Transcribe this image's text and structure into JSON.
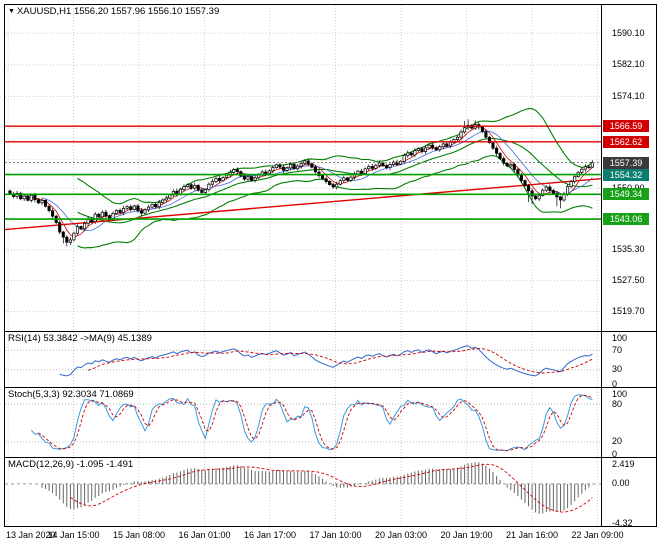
{
  "main_header": {
    "icon": "▼",
    "text": "XAUUSD,H1 1556.20 1557.96 1556.10 1557.39"
  },
  "panels": {
    "rsi": {
      "header": "RSI(14) 53.3842 ->MA(9) 45.1389",
      "axis": [
        "100",
        "70",
        "30",
        "0"
      ],
      "axis_values": [
        100,
        70,
        30,
        0
      ],
      "levels": [
        70,
        30
      ]
    },
    "stoch": {
      "header": "Stoch(5,3,3) 92.3034 71.0869",
      "axis": [
        "100",
        "80",
        "20",
        "0"
      ],
      "axis_values": [
        100,
        80,
        20,
        0
      ],
      "levels": [
        80,
        20
      ]
    },
    "macd": {
      "header": "MACD(12,26,9) -1.095 -1.491",
      "axis": [
        {
          "text": "2.419",
          "value": 2.419
        },
        {
          "text": "0.00",
          "value": 0
        },
        {
          "text": "-4.32",
          "value": -4.32
        }
      ],
      "range": [
        -4.32,
        2.419
      ]
    }
  },
  "time_axis": {
    "labels": [
      "13 Jan 2020",
      "14 Jan 15:00",
      "15 Jan 08:00",
      "16 Jan 01:00",
      "16 Jan 17:00",
      "17 Jan 10:00",
      "20 Jan 03:00",
      "20 Jan 19:00",
      "21 Jan 16:00",
      "22 Jan 09:00"
    ]
  },
  "colors": {
    "grid": "#cdcdcd",
    "bollinger": "#008000",
    "level_red": "#e00000",
    "level_green": "#00a000",
    "rsi_line": "#3366cc",
    "rsi_ma": "#cc0000",
    "stoch_main": "#3a9ad9",
    "stoch_signal": "#cc0000",
    "macd_hist": "#666666",
    "macd_signal": "#cc0000",
    "badge_red": "#d20000",
    "badge_dark": "#3a3a3a",
    "badge_teal": "#0b7d6e",
    "badge_green": "#18a018"
  },
  "chart_data": {
    "type": "candlestick",
    "symbol": "XAUUSD",
    "timeframe": "H1",
    "current_bar": {
      "open": 1556.2,
      "high": 1557.96,
      "low": 1556.1,
      "close": 1557.39
    },
    "bars": {
      "first_open": 1550.2,
      "closes": [
        1549.5,
        1548.8,
        1549.6,
        1548.2,
        1548.9,
        1547.8,
        1549.1,
        1548.0,
        1547.2,
        1547.8,
        1546.3,
        1545.2,
        1543.8,
        1542.2,
        1539.8,
        1538.5,
        1537.2,
        1537.8,
        1539.5,
        1541.2,
        1540.6,
        1542.0,
        1543.1,
        1542.4,
        1544.3,
        1543.6,
        1544.8,
        1543.9,
        1543.2,
        1544.5,
        1545.3,
        1544.7,
        1545.8,
        1546.2,
        1545.5,
        1546.4,
        1545.2,
        1544.6,
        1545.4,
        1546.1,
        1546.8,
        1546.2,
        1547.3,
        1547.9,
        1548.4,
        1549.2,
        1550.1,
        1549.4,
        1550.6,
        1551.3,
        1551.8,
        1550.9,
        1551.6,
        1550.4,
        1549.8,
        1550.5,
        1551.9,
        1552.6,
        1553.4,
        1552.8,
        1553.6,
        1554.2,
        1554.9,
        1555.6,
        1555.1,
        1554.0,
        1553.2,
        1553.8,
        1552.9,
        1553.5,
        1554.4,
        1555.0,
        1554.6,
        1555.3,
        1556.1,
        1556.8,
        1556.2,
        1555.4,
        1556.0,
        1556.9,
        1555.8,
        1556.5,
        1557.2,
        1557.8,
        1557.1,
        1556.2,
        1555.0,
        1554.1,
        1553.3,
        1552.6,
        1551.8,
        1551.2,
        1551.9,
        1552.8,
        1553.5,
        1552.9,
        1553.7,
        1554.5,
        1555.2,
        1554.6,
        1555.8,
        1556.4,
        1555.9,
        1556.7,
        1557.3,
        1556.6,
        1556.1,
        1556.9,
        1557.5,
        1557.0,
        1557.7,
        1559.2,
        1559.8,
        1559.3,
        1560.4,
        1560.9,
        1560.2,
        1561.1,
        1561.8,
        1561.2,
        1560.6,
        1561.4,
        1562.1,
        1561.6,
        1562.5,
        1563.2,
        1563.8,
        1565.1,
        1566.2,
        1566.8,
        1566.1,
        1567.0,
        1566.4,
        1565.2,
        1563.8,
        1562.4,
        1561.0,
        1559.7,
        1558.4,
        1557.2,
        1556.5,
        1556.9,
        1555.6,
        1554.2,
        1552.8,
        1551.5,
        1550.2,
        1548.9,
        1548.2,
        1549.0,
        1550.4,
        1551.2,
        1550.3,
        1549.6,
        1548.7,
        1547.9,
        1549.5,
        1551.3,
        1552.6,
        1553.8,
        1554.9,
        1555.7,
        1556.3,
        1556.2,
        1557.39
      ],
      "wick_overrides": {
        "15": {
          "l": 1536.9
        },
        "16": {
          "l": 1536.2
        },
        "17": {
          "l": 1536.5
        },
        "128": {
          "h": 1567.9
        },
        "129": {
          "h": 1568.3
        },
        "131": {
          "h": 1568.1
        },
        "146": {
          "l": 1547.4
        },
        "147": {
          "l": 1546.8
        },
        "154": {
          "l": 1546.3
        },
        "155": {
          "l": 1545.8
        },
        "164": {
          "o": 1556.2,
          "h": 1557.96,
          "l": 1556.1
        }
      }
    },
    "overlays": {
      "bollinger_period": 20,
      "bollinger_dev": 2,
      "ma_fast": 5,
      "ma_slow": 10
    },
    "levels": {
      "red": [
        1566.59,
        1562.62
      ],
      "green": [
        1554.32,
        1549.34,
        1543.06
      ]
    },
    "trendline": {
      "from_price": 1540.4,
      "to_price": 1553.3
    },
    "y_axis": {
      "grid": [
        1590.1,
        1582.1,
        1574.1,
        1566.1,
        1558.1,
        1550.9,
        1543.1,
        1535.3,
        1527.5,
        1519.7
      ],
      "plain": [
        {
          "text": "1590.10",
          "price": 1590.1
        },
        {
          "text": "1582.10",
          "price": 1582.1
        },
        {
          "text": "1574.10",
          "price": 1574.1
        },
        {
          "text": "1550.90",
          "price": 1550.9
        },
        {
          "text": "1535.30",
          "price": 1535.3
        },
        {
          "text": "1527.50",
          "price": 1527.5
        },
        {
          "text": "1519.70",
          "price": 1519.7
        }
      ],
      "boxed": [
        {
          "text": "1566.59",
          "price": 1566.59,
          "color": "#d20000"
        },
        {
          "text": "1562.62",
          "price": 1562.62,
          "color": "#d20000"
        },
        {
          "text": "1557.39",
          "price": 1557.39,
          "color": "#3a3a3a"
        },
        {
          "text": "1554.32",
          "price": 1554.32,
          "color": "#0b7d6e"
        },
        {
          "text": "1549.34",
          "price": 1549.34,
          "color": "#18a018"
        },
        {
          "text": "1543.06",
          "price": 1543.06,
          "color": "#18a018"
        }
      ]
    },
    "indicators": {
      "rsi": {
        "period": 14,
        "ma_period": 9,
        "value": 53.3842,
        "ma_value": 45.1389
      },
      "stoch": {
        "k": 5,
        "d": 3,
        "slowing": 3,
        "value": 92.3034,
        "signal": 71.0869
      },
      "macd": {
        "fast": 12,
        "slow": 26,
        "signal": 9,
        "value": -1.095,
        "signal_value": -1.491
      }
    }
  }
}
